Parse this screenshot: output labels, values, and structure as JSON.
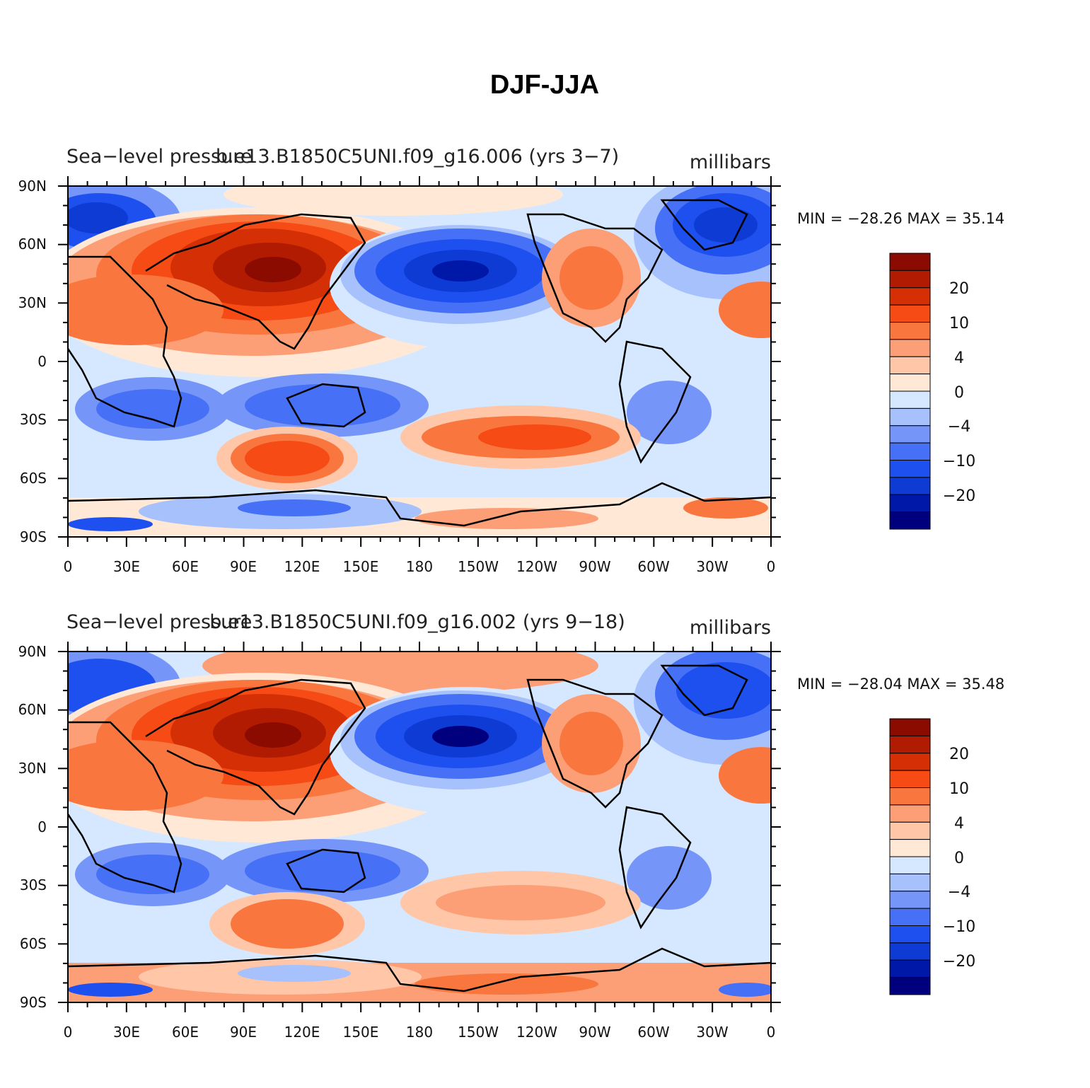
{
  "figure": {
    "title": "DJF-JJA"
  },
  "colors": {
    "levels": [
      "#00007f",
      "#0018a8",
      "#0e3bd4",
      "#1e50f0",
      "#4670f5",
      "#7595f8",
      "#a7c1fd",
      "#d6e8ff",
      "#ffe8d6",
      "#ffc7a8",
      "#fc9f77",
      "#f9773f",
      "#f64b14",
      "#d42f05",
      "#b01b02",
      "#8c0b00"
    ]
  },
  "colorbar": {
    "labels": [
      "20",
      "10",
      "4",
      "0",
      "−4",
      "−10",
      "−20"
    ]
  },
  "panels": [
    {
      "left_title": "Sea−level pressure",
      "center_title": "b.e13.B1850C5UNI.f09_g16.006 (yrs 3−7)",
      "units": "millibars",
      "minmax": "MIN = −28.26  MAX =   35.14",
      "lat_ticks": [
        "90N",
        "60N",
        "30N",
        "0",
        "30S",
        "60S",
        "90S"
      ],
      "lon_ticks": [
        "0",
        "30E",
        "60E",
        "90E",
        "120E",
        "150E",
        "180",
        "150W",
        "120W",
        "90W",
        "60W",
        "30W",
        "0"
      ]
    },
    {
      "left_title": "Sea−level pressure",
      "center_title": "b.e13.B1850C5UNI.f09_g16.002 (yrs 9−18)",
      "units": "millibars",
      "minmax": "MIN = −28.04  MAX =   35.48",
      "lat_ticks": [
        "90N",
        "60N",
        "30N",
        "0",
        "30S",
        "60S",
        "90S"
      ],
      "lon_ticks": [
        "0",
        "30E",
        "60E",
        "90E",
        "120E",
        "150E",
        "180",
        "150W",
        "120W",
        "90W",
        "60W",
        "30W",
        "0"
      ]
    }
  ]
}
